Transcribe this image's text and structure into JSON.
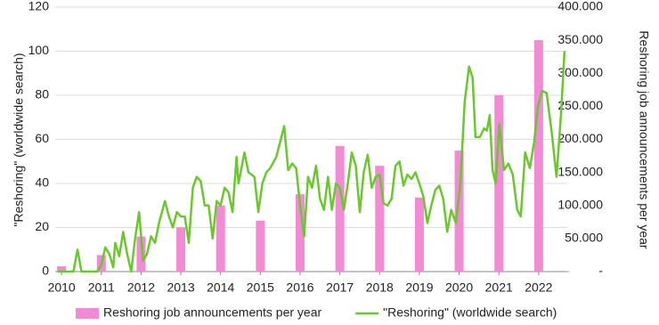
{
  "chart_data": {
    "type": "combo",
    "y_label": "\"Reshoring\" (worldwide search)",
    "y2_label": "Reshoring job announcements per year",
    "xlim": [
      2009.84,
      2022.72
    ],
    "xticks": [
      2010,
      2011,
      2012,
      2013,
      2014,
      2015,
      2016,
      2017,
      2018,
      2019,
      2020,
      2021,
      2022
    ],
    "ylim": [
      0,
      120
    ],
    "yticks": [
      0,
      20,
      40,
      60,
      80,
      100,
      120
    ],
    "y2lim": [
      0,
      400000
    ],
    "y2ticks": [
      {
        "value": 0,
        "label": "-"
      },
      {
        "value": 50000,
        "label": "50.000"
      },
      {
        "value": 100000,
        "label": "100.000"
      },
      {
        "value": 150000,
        "label": "150.000"
      },
      {
        "value": 200000,
        "label": "200.000"
      },
      {
        "value": 250000,
        "label": "250.000"
      },
      {
        "value": 300000,
        "label": "300.000"
      },
      {
        "value": 350000,
        "label": "350.000"
      },
      {
        "value": 400000,
        "label": "400.000"
      }
    ],
    "grid": true,
    "legend": "bottom",
    "series": [
      {
        "name": "Reshoring job announcements per year",
        "type": "bar",
        "axis": "y2",
        "color": "#f28ad6",
        "x": [
          2010,
          2011,
          2012,
          2013,
          2014,
          2015,
          2016,
          2017,
          2018,
          2019,
          2020,
          2021,
          2022
        ],
        "values": [
          8000,
          25000,
          53000,
          67000,
          100000,
          77000,
          117000,
          190000,
          160000,
          112000,
          183000,
          267000,
          350000
        ]
      },
      {
        "name": "\"Reshoring\" (worldwide search)",
        "type": "line",
        "axis": "y",
        "color": "#6cc72f",
        "x": [
          2009.9,
          2010.3,
          2010.4,
          2010.5,
          2010.9,
          2011.0,
          2011.1,
          2011.2,
          2011.3,
          2011.35,
          2011.45,
          2011.55,
          2011.65,
          2011.75,
          2011.85,
          2011.95,
          2012.05,
          2012.15,
          2012.25,
          2012.35,
          2012.45,
          2012.6,
          2012.7,
          2012.8,
          2012.9,
          2013.0,
          2013.1,
          2013.2,
          2013.3,
          2013.4,
          2013.5,
          2013.6,
          2013.7,
          2013.8,
          2013.9,
          2014.0,
          2014.1,
          2014.2,
          2014.3,
          2014.4,
          2014.45,
          2014.6,
          2014.7,
          2014.85,
          2014.95,
          2015.05,
          2015.15,
          2015.25,
          2015.4,
          2015.5,
          2015.6,
          2015.7,
          2015.8,
          2015.9,
          2016.0,
          2016.1,
          2016.2,
          2016.3,
          2016.4,
          2016.5,
          2016.6,
          2016.7,
          2016.8,
          2016.9,
          2017.0,
          2017.1,
          2017.2,
          2017.3,
          2017.4,
          2017.5,
          2017.6,
          2017.7,
          2017.8,
          2017.9,
          2018.0,
          2018.1,
          2018.2,
          2018.3,
          2018.4,
          2018.5,
          2018.6,
          2018.7,
          2018.8,
          2018.9,
          2019.0,
          2019.1,
          2019.2,
          2019.3,
          2019.4,
          2019.5,
          2019.6,
          2019.7,
          2019.8,
          2019.92,
          2020.03,
          2020.14,
          2020.25,
          2020.34,
          2020.41,
          2020.52,
          2020.63,
          2020.7,
          2020.77,
          2020.84,
          2020.92,
          2021.01,
          2021.13,
          2021.24,
          2021.35,
          2021.46,
          2021.55,
          2021.66,
          2021.78,
          2021.89,
          2021.98,
          2022.09,
          2022.2,
          2022.33,
          2022.45,
          2022.56,
          2022.65
        ],
        "values": [
          0,
          0,
          10,
          0,
          0,
          3,
          11,
          8,
          2,
          13,
          7,
          18,
          8,
          0,
          15,
          27,
          5,
          8,
          16,
          13,
          22,
          32,
          25,
          20,
          27,
          25,
          25,
          13,
          38,
          43,
          41,
          30,
          30,
          15,
          32,
          30,
          38,
          36,
          27,
          52,
          40,
          54,
          45,
          43,
          27,
          40,
          45,
          47,
          52,
          59,
          66,
          46,
          49,
          47,
          30,
          16,
          43,
          38,
          48,
          33,
          28,
          43,
          28,
          40,
          38,
          28,
          40,
          54,
          48,
          27,
          45,
          53,
          38,
          43,
          44,
          31,
          30,
          33,
          48,
          50,
          39,
          44,
          42,
          45,
          40,
          34,
          22,
          30,
          37,
          39,
          33,
          18,
          28,
          22,
          40,
          77,
          93,
          88,
          61,
          61,
          65,
          64,
          71,
          46,
          40,
          67,
          46,
          49,
          44,
          28,
          25,
          54,
          47,
          59,
          75,
          82,
          81,
          63,
          43,
          71,
          100
        ]
      }
    ]
  }
}
